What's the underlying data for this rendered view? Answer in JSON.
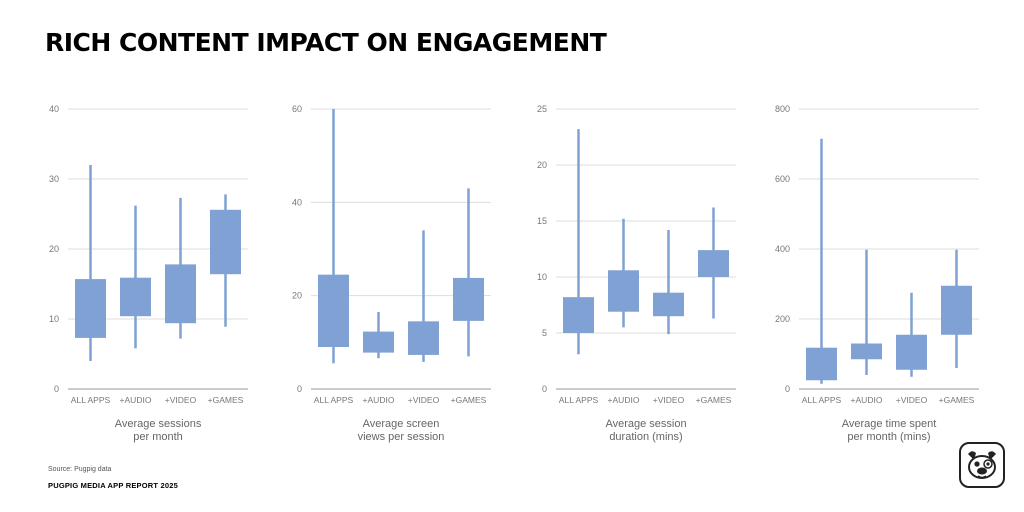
{
  "title": "RICH CONTENT IMPACT ON ENGAGEMENT",
  "footer": {
    "source": "Source: Pugpig data",
    "report": "PUGPIG MEDIA APP REPORT 2025"
  },
  "logo": {
    "icon": "pug-face-icon"
  },
  "colors": {
    "box": "#7fa1d3",
    "grid": "#dddddd",
    "axis": "#999999",
    "tick": "#777777",
    "label": "#666666"
  },
  "chart_data": [
    {
      "type": "box",
      "categories": [
        "ALL APPS",
        "+AUDIO",
        "+VIDEO",
        "+GAMES"
      ],
      "ylim": [
        0,
        40
      ],
      "yticks": [
        0,
        10,
        20,
        30,
        40
      ],
      "xlabel": [
        "Average sessions",
        "per month"
      ],
      "ylabel": "",
      "series": [
        {
          "category": "ALL APPS",
          "min": 4,
          "q1": 7.3,
          "q3": 15.7,
          "max": 32
        },
        {
          "category": "+AUDIO",
          "min": 5.8,
          "q1": 10.4,
          "q3": 15.9,
          "max": 26.2
        },
        {
          "category": "+VIDEO",
          "min": 7.2,
          "q1": 9.4,
          "q3": 17.8,
          "max": 27.3
        },
        {
          "category": "+GAMES",
          "min": 8.9,
          "q1": 16.4,
          "q3": 25.6,
          "max": 27.8
        }
      ]
    },
    {
      "type": "box",
      "categories": [
        "ALL APPS",
        "+AUDIO",
        "+VIDEO",
        "+GAMES"
      ],
      "ylim": [
        0,
        60
      ],
      "yticks": [
        0,
        20,
        40,
        60
      ],
      "xlabel": [
        "Average screen",
        "views per session"
      ],
      "ylabel": "",
      "series": [
        {
          "category": "ALL APPS",
          "min": 5.5,
          "q1": 9,
          "q3": 24.5,
          "max": 60
        },
        {
          "category": "+AUDIO",
          "min": 6.6,
          "q1": 7.8,
          "q3": 12.3,
          "max": 16.5
        },
        {
          "category": "+VIDEO",
          "min": 5.8,
          "q1": 7.3,
          "q3": 14.5,
          "max": 34
        },
        {
          "category": "+GAMES",
          "min": 7,
          "q1": 14.6,
          "q3": 23.8,
          "max": 43
        }
      ]
    },
    {
      "type": "box",
      "categories": [
        "ALL APPS",
        "+AUDIO",
        "+VIDEO",
        "+GAMES"
      ],
      "ylim": [
        0,
        25
      ],
      "yticks": [
        0,
        5,
        10,
        15,
        20,
        25
      ],
      "xlabel": [
        "Average session",
        "duration (mins)"
      ],
      "ylabel": "",
      "series": [
        {
          "category": "ALL APPS",
          "min": 3.1,
          "q1": 5,
          "q3": 8.2,
          "max": 23.2
        },
        {
          "category": "+AUDIO",
          "min": 5.5,
          "q1": 6.9,
          "q3": 10.6,
          "max": 15.2
        },
        {
          "category": "+VIDEO",
          "min": 4.9,
          "q1": 6.5,
          "q3": 8.6,
          "max": 14.2
        },
        {
          "category": "+GAMES",
          "min": 6.3,
          "q1": 10,
          "q3": 12.4,
          "max": 16.2
        }
      ]
    },
    {
      "type": "box",
      "categories": [
        "ALL APPS",
        "+AUDIO",
        "+VIDEO",
        "+GAMES"
      ],
      "ylim": [
        0,
        800
      ],
      "yticks": [
        0,
        200,
        400,
        600,
        800
      ],
      "xlabel": [
        "Average time spent",
        "per month (mins)"
      ],
      "ylabel": "",
      "series": [
        {
          "category": "ALL APPS",
          "min": 15,
          "q1": 25,
          "q3": 118,
          "max": 715
        },
        {
          "category": "+AUDIO",
          "min": 40,
          "q1": 85,
          "q3": 130,
          "max": 398
        },
        {
          "category": "+VIDEO",
          "min": 35,
          "q1": 55,
          "q3": 155,
          "max": 275
        },
        {
          "category": "+GAMES",
          "min": 60,
          "q1": 155,
          "q3": 295,
          "max": 398
        }
      ]
    }
  ]
}
